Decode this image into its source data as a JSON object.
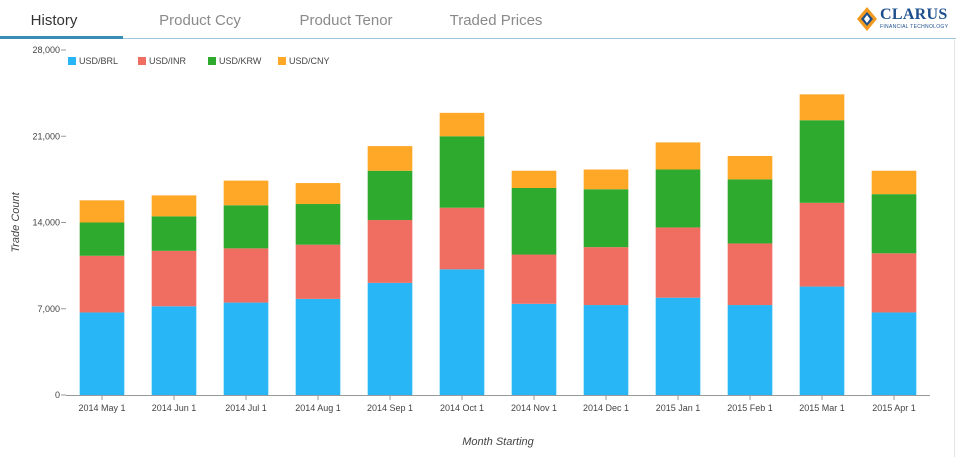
{
  "tabs": [
    {
      "label": "History",
      "active": true
    },
    {
      "label": "Product Ccy",
      "active": false
    },
    {
      "label": "Product Tenor",
      "active": false
    },
    {
      "label": "Traded Prices",
      "active": false
    }
  ],
  "logo": {
    "word": "CLARUS",
    "tagline": "FINANCIAL TECHNOLOGY"
  },
  "chart_data": {
    "type": "bar",
    "stacked": true,
    "categories": [
      "2014 May 1",
      "2014 Jun 1",
      "2014 Jul 1",
      "2014 Aug 1",
      "2014 Sep 1",
      "2014 Oct 1",
      "2014 Nov 1",
      "2014 Dec 1",
      "2015 Jan 1",
      "2015 Feb 1",
      "2015 Mar 1",
      "2015 Apr 1"
    ],
    "series": [
      {
        "name": "USD/BRL",
        "color": "#29b6f6",
        "values": [
          6700,
          7200,
          7500,
          7800,
          9100,
          10200,
          7400,
          7300,
          7900,
          7300,
          8800,
          6700
        ]
      },
      {
        "name": "USD/INR",
        "color": "#f06e61",
        "values": [
          4600,
          4500,
          4400,
          4400,
          5100,
          5000,
          4000,
          4700,
          5700,
          5000,
          6800,
          4800
        ]
      },
      {
        "name": "USD/KRW",
        "color": "#2eaa2e",
        "values": [
          2700,
          2800,
          3500,
          3300,
          4000,
          5800,
          5400,
          4700,
          4700,
          5200,
          6700,
          4800
        ]
      },
      {
        "name": "USD/CNY",
        "color": "#ffa726",
        "values": [
          1800,
          1700,
          2000,
          1700,
          2000,
          1900,
          1400,
          1600,
          2200,
          1900,
          2100,
          1900
        ]
      }
    ],
    "xlabel": "Month Starting",
    "ylabel": "Trade Count",
    "ylim": [
      0,
      28000
    ],
    "yticks": [
      0,
      7000,
      14000,
      21000,
      28000
    ],
    "ytick_labels": [
      "0",
      "7,000",
      "14,000",
      "21,000",
      "28,000"
    ],
    "legend": "top-left",
    "grid": false
  }
}
